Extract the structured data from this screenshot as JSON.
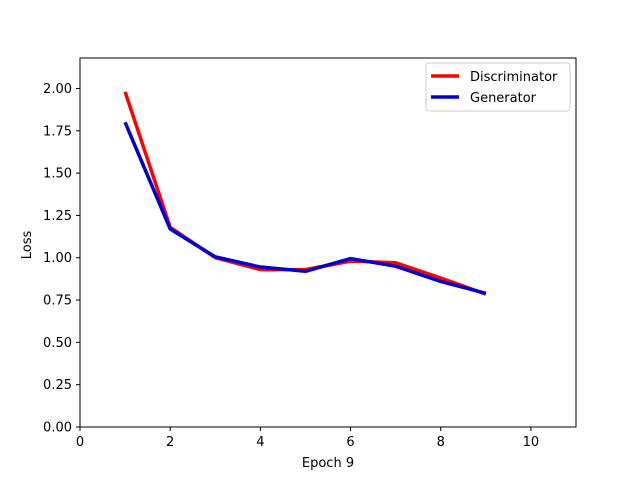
{
  "chart_data": {
    "type": "line",
    "title": "",
    "xlabel": "Epoch 9",
    "ylabel": "Loss",
    "xlim": [
      0,
      11
    ],
    "ylim": [
      0.0,
      2.18
    ],
    "xticks": [
      0,
      2,
      4,
      6,
      8,
      10
    ],
    "xtick_labels": [
      "0",
      "2",
      "4",
      "6",
      "8",
      "10"
    ],
    "yticks": [
      0.0,
      0.25,
      0.5,
      0.75,
      1.0,
      1.25,
      1.5,
      1.75,
      2.0
    ],
    "ytick_labels": [
      "0.00",
      "0.25",
      "0.50",
      "0.75",
      "1.00",
      "1.25",
      "1.50",
      "1.75",
      "2.00"
    ],
    "grid": false,
    "legend_position": "top-right",
    "x": [
      1,
      2,
      3,
      4,
      5,
      6,
      7,
      8,
      9
    ],
    "series": [
      {
        "name": "Discriminator",
        "color": "#ff0000",
        "values": [
          1.98,
          1.18,
          1.0,
          0.93,
          0.93,
          0.98,
          0.97,
          0.88,
          0.785
        ]
      },
      {
        "name": "Generator",
        "color": "#0000cc",
        "values": [
          1.8,
          1.17,
          1.005,
          0.945,
          0.92,
          0.995,
          0.95,
          0.86,
          0.79
        ]
      }
    ]
  }
}
